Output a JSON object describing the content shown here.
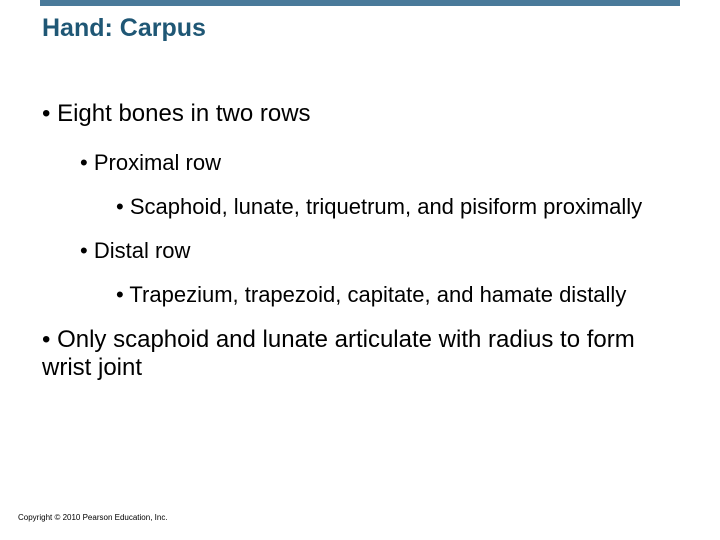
{
  "colors": {
    "title_bar": "#4a7a9a",
    "title_text": "#1f5775",
    "body_text": "#000000",
    "background": "#ffffff"
  },
  "typography": {
    "title_fontsize": 25,
    "title_weight": "bold",
    "level1_fontsize": 24,
    "level2_fontsize": 22,
    "level3_fontsize": 22,
    "copyright_fontsize": 8,
    "font_family": "Arial"
  },
  "title": "Hand: Carpus",
  "bullets": {
    "b1": "Eight bones in two rows",
    "b1_1": "Proximal row",
    "b1_1_1": "Scaphoid, lunate, triquetrum, and pisiform proximally",
    "b1_2": "Distal row",
    "b1_2_1": "Trapezium, trapezoid, capitate, and hamate distally",
    "b2": "Only scaphoid and lunate articulate with radius to form wrist joint"
  },
  "copyright": "Copyright © 2010 Pearson Education, Inc."
}
